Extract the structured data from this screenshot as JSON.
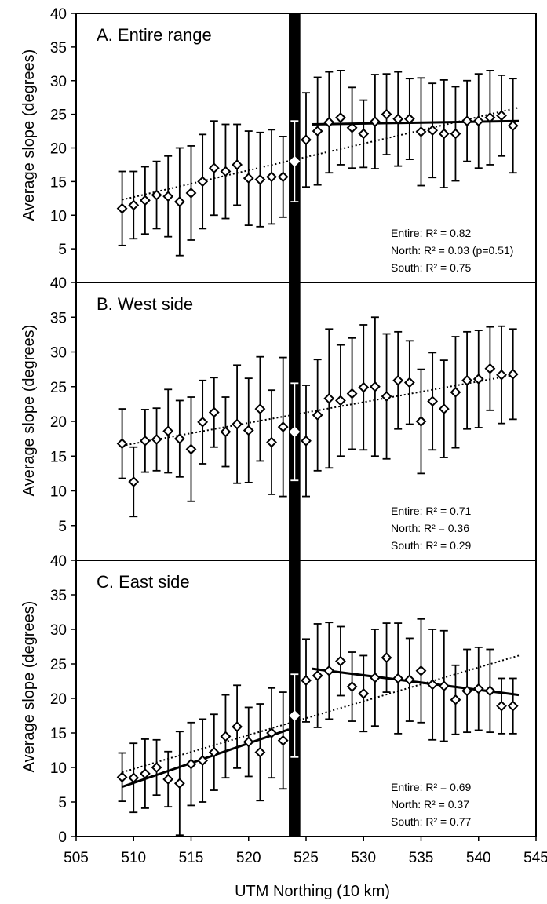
{
  "figure": {
    "ylabel": "Average slope (degrees)",
    "xlabel": "UTM Northing (10 km)",
    "x_ticks": [
      "505",
      "510",
      "515",
      "520",
      "525",
      "530",
      "535",
      "540",
      "545"
    ],
    "y_ticks": [
      "0",
      "5",
      "10",
      "15",
      "20",
      "25",
      "30",
      "35",
      "40"
    ],
    "gap_band": [
      523.5,
      524.5
    ]
  },
  "chart_data": [
    {
      "type": "scatter",
      "title": "A. Entire range",
      "xlim": [
        505,
        545
      ],
      "ylim": [
        0,
        40
      ],
      "x": [
        509,
        510,
        511,
        512,
        513,
        514,
        515,
        516,
        517,
        518,
        519,
        520,
        521,
        522,
        523,
        524,
        525,
        526,
        527,
        528,
        529,
        530,
        531,
        532,
        533,
        534,
        535,
        536,
        537,
        538,
        539,
        540,
        541,
        542,
        543
      ],
      "y": [
        11,
        11.5,
        12.2,
        13,
        12.8,
        12,
        13.3,
        15,
        17,
        16.5,
        17.5,
        15.5,
        15.3,
        15.7,
        15.7,
        18,
        21.2,
        22.5,
        23.8,
        24.5,
        23,
        22.1,
        23.9,
        25,
        24.3,
        24.3,
        22.4,
        22.6,
        22.1,
        22.1,
        24,
        24,
        24.5,
        24.8,
        23.3
      ],
      "error": [
        5.5,
        5,
        5,
        5,
        6,
        8,
        7,
        7,
        7,
        7,
        6,
        7,
        7,
        7,
        6,
        6,
        7,
        8,
        7.5,
        7,
        6,
        5,
        7,
        6,
        7,
        6,
        8,
        7,
        8,
        7,
        6,
        7,
        7,
        6,
        7
      ],
      "fits": [
        {
          "label": "Entire",
          "style": "dotted",
          "from": [
            509,
            12.3
          ],
          "to": [
            543.5,
            26
          ]
        },
        {
          "label": "North",
          "style": "solid",
          "from": [
            525.5,
            23.5
          ],
          "to": [
            543.5,
            24
          ]
        }
      ],
      "stats": [
        "Entire: R² = 0.82",
        "North: R² = 0.03  (p=0.51)",
        "South: R² = 0.75"
      ]
    },
    {
      "type": "scatter",
      "title": "B. West side",
      "xlim": [
        505,
        545
      ],
      "ylim": [
        0,
        40
      ],
      "x": [
        509,
        510,
        511,
        512,
        513,
        514,
        515,
        516,
        517,
        518,
        519,
        520,
        521,
        522,
        523,
        524,
        525,
        526,
        527,
        528,
        529,
        530,
        531,
        532,
        533,
        534,
        535,
        536,
        537,
        538,
        539,
        540,
        541,
        542,
        543
      ],
      "y": [
        16.8,
        11.3,
        17.2,
        17.4,
        18.6,
        17.5,
        16,
        19.9,
        21.3,
        18.5,
        19.6,
        18.7,
        21.8,
        17,
        19.2,
        18.5,
        17.2,
        20.9,
        23.3,
        23,
        24,
        24.9,
        25,
        23.6,
        25.9,
        25.6,
        20,
        22.9,
        21.8,
        24.2,
        25.9,
        26.1,
        27.6,
        26.7,
        26.8
      ],
      "error": [
        5,
        5,
        4.5,
        4.5,
        6,
        5.5,
        7.5,
        6,
        5,
        5,
        8.5,
        7.5,
        7.5,
        7.5,
        10,
        7,
        8,
        8,
        10,
        8,
        8,
        9,
        10,
        9,
        7,
        6,
        7.5,
        7,
        7,
        8,
        7,
        7,
        6,
        7,
        6.5
      ],
      "fits": [
        {
          "label": "Entire",
          "style": "dotted",
          "from": [
            509,
            16.5
          ],
          "to": [
            543.5,
            26.8
          ]
        }
      ],
      "stats": [
        "Entire: R² = 0.71",
        "North: R² = 0.36",
        "South: R² = 0.29"
      ]
    },
    {
      "type": "scatter",
      "title": "C. East side",
      "xlim": [
        505,
        545
      ],
      "ylim": [
        0,
        40
      ],
      "x": [
        509,
        510,
        511,
        512,
        513,
        514,
        515,
        516,
        517,
        518,
        519,
        520,
        521,
        522,
        523,
        524,
        525,
        526,
        527,
        528,
        529,
        530,
        531,
        532,
        533,
        534,
        535,
        536,
        537,
        538,
        539,
        540,
        541,
        542,
        543
      ],
      "y": [
        8.6,
        8.5,
        9.1,
        10,
        8.3,
        7.7,
        10.5,
        11,
        12.2,
        14.5,
        15.9,
        13.7,
        12.2,
        15,
        13.9,
        17.5,
        22.6,
        23.3,
        24,
        25.4,
        21.7,
        20.7,
        23,
        25.9,
        22.9,
        22.7,
        24,
        22,
        21.8,
        19.8,
        21.1,
        21.4,
        21.1,
        18.9,
        18.9
      ],
      "error": [
        3.5,
        5,
        5,
        4,
        4,
        7.5,
        6,
        6,
        5.5,
        6,
        6,
        5,
        7,
        6.5,
        7,
        6,
        6,
        7.5,
        7,
        5,
        5,
        5.5,
        7,
        5,
        8,
        6,
        7.5,
        8,
        8,
        5,
        6,
        6,
        6,
        4,
        4
      ],
      "fits": [
        {
          "label": "Entire",
          "style": "dotted",
          "from": [
            509,
            9.3
          ],
          "to": [
            543.5,
            26.2
          ]
        },
        {
          "label": "South",
          "style": "solid",
          "from": [
            509,
            7.2
          ],
          "to": [
            523.5,
            15.5
          ]
        },
        {
          "label": "North",
          "style": "solid",
          "from": [
            525.5,
            24.3
          ],
          "to": [
            543.5,
            20.5
          ]
        }
      ],
      "stats": [
        "Entire: R² = 0.69",
        "North: R² = 0.37",
        "South: R² = 0.77"
      ]
    }
  ]
}
